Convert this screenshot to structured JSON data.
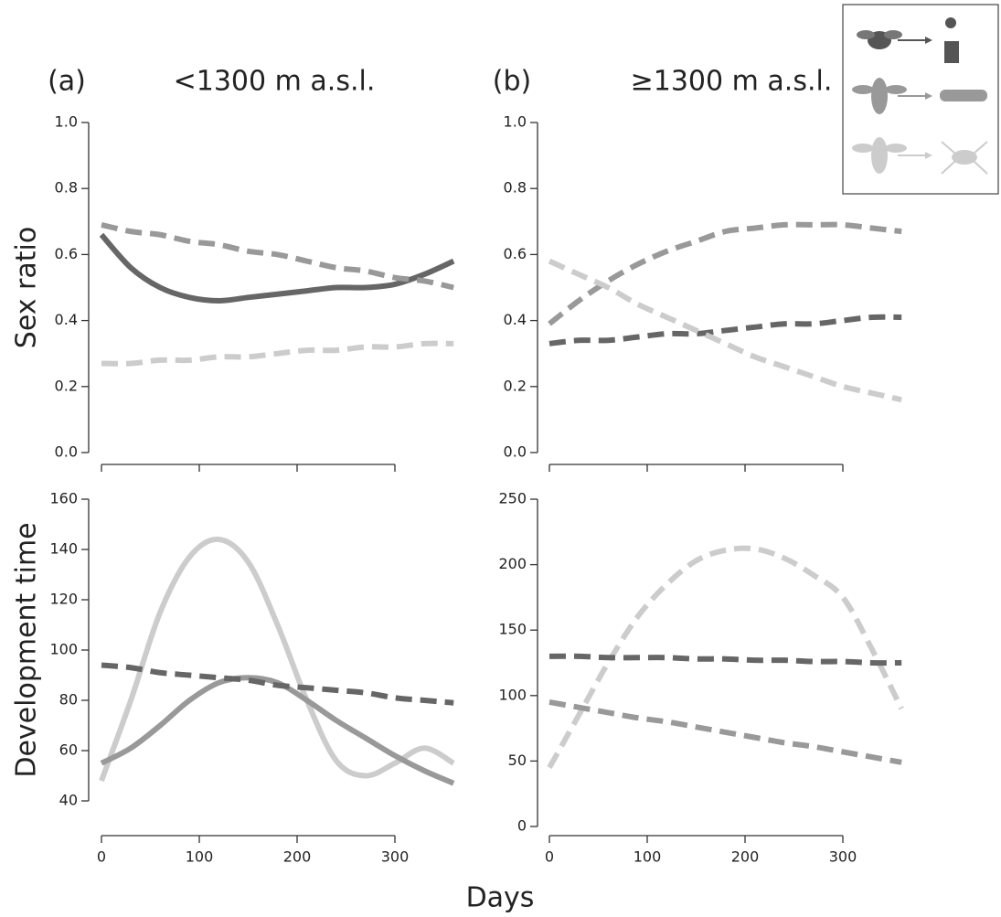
{
  "xlabel": "Days",
  "chart_data": [
    {
      "type": "line",
      "label": "(a)",
      "title": "<1300 m a.s.l.",
      "ylabel": "Sex ratio",
      "x": [
        0,
        30,
        60,
        90,
        120,
        150,
        180,
        210,
        240,
        270,
        300,
        330,
        360
      ],
      "xlim": [
        0,
        300
      ],
      "xticks": [
        0,
        100,
        200,
        300
      ],
      "show_xtick_labels": false,
      "ylim": [
        0,
        1
      ],
      "yticks": [
        {
          "value": 0,
          "label": "0.0"
        },
        0.2,
        0.4,
        0.6,
        0.8,
        {
          "value": 1,
          "label": "1.0"
        }
      ],
      "series": [
        {
          "color": "#666666",
          "dashed": false,
          "values": [
            0.66,
            0.56,
            0.5,
            0.47,
            0.46,
            0.47,
            0.48,
            0.49,
            0.5,
            0.5,
            0.51,
            0.54,
            0.58
          ]
        },
        {
          "color": "#999999",
          "dashed": true,
          "values": [
            0.69,
            0.67,
            0.66,
            0.64,
            0.63,
            0.61,
            0.6,
            0.58,
            0.56,
            0.55,
            0.53,
            0.52,
            0.5
          ]
        },
        {
          "color": "#cccccc",
          "dashed": true,
          "values": [
            0.27,
            0.27,
            0.28,
            0.28,
            0.29,
            0.29,
            0.3,
            0.31,
            0.31,
            0.32,
            0.32,
            0.33,
            0.33
          ]
        }
      ]
    },
    {
      "type": "line",
      "label": "(b)",
      "title": "≥1300 m a.s.l.",
      "x": [
        0,
        30,
        60,
        90,
        120,
        150,
        180,
        210,
        240,
        270,
        300,
        330,
        360
      ],
      "xlim": [
        0,
        300
      ],
      "xticks": [
        0,
        100,
        200,
        300
      ],
      "show_xtick_labels": false,
      "ylim": [
        0,
        1
      ],
      "yticks": [
        {
          "value": 0,
          "label": "0.0"
        },
        0.2,
        0.4,
        0.6,
        0.8,
        {
          "value": 1,
          "label": "1.0"
        }
      ],
      "series": [
        {
          "color": "#999999",
          "dashed": true,
          "values": [
            0.39,
            0.46,
            0.52,
            0.57,
            0.61,
            0.64,
            0.67,
            0.68,
            0.69,
            0.69,
            0.69,
            0.68,
            0.67
          ]
        },
        {
          "color": "#666666",
          "dashed": true,
          "values": [
            0.33,
            0.34,
            0.34,
            0.35,
            0.36,
            0.36,
            0.37,
            0.38,
            0.39,
            0.39,
            0.4,
            0.41,
            0.41
          ]
        },
        {
          "color": "#cccccc",
          "dashed": true,
          "values": [
            0.58,
            0.54,
            0.5,
            0.45,
            0.41,
            0.37,
            0.33,
            0.29,
            0.26,
            0.23,
            0.2,
            0.18,
            0.16
          ]
        }
      ]
    },
    {
      "type": "line",
      "ylabel": "Development time",
      "x": [
        0,
        30,
        60,
        90,
        120,
        150,
        180,
        210,
        240,
        270,
        300,
        330,
        360
      ],
      "xlim": [
        0,
        300
      ],
      "xticks": [
        0,
        100,
        200,
        300
      ],
      "show_xtick_labels": true,
      "ylim": [
        40,
        160
      ],
      "yticks": [
        40,
        60,
        80,
        100,
        120,
        140,
        160
      ],
      "series": [
        {
          "color": "#cccccc",
          "dashed": false,
          "values": [
            48,
            80,
            115,
            137,
            144,
            135,
            110,
            80,
            56,
            50,
            55,
            61,
            55
          ]
        },
        {
          "color": "#999999",
          "dashed": false,
          "values": [
            55,
            61,
            70,
            80,
            87,
            89,
            87,
            80,
            72,
            65,
            58,
            52,
            47
          ]
        },
        {
          "color": "#666666",
          "dashed": true,
          "values": [
            94,
            93,
            91,
            90,
            89,
            88,
            86,
            85,
            84,
            83,
            81,
            80,
            79
          ]
        }
      ]
    },
    {
      "type": "line",
      "x": [
        0,
        30,
        60,
        90,
        120,
        150,
        180,
        210,
        240,
        270,
        300,
        330,
        360
      ],
      "xlim": [
        0,
        300
      ],
      "xticks": [
        0,
        100,
        200,
        300
      ],
      "show_xtick_labels": true,
      "ylim": [
        0,
        250
      ],
      "yticks": [
        0,
        50,
        100,
        150,
        200,
        250
      ],
      "series": [
        {
          "color": "#cccccc",
          "dashed": true,
          "values": [
            45,
            85,
            125,
            160,
            185,
            203,
            211,
            212,
            205,
            192,
            175,
            135,
            90
          ]
        },
        {
          "color": "#666666",
          "dashed": true,
          "values": [
            130,
            130,
            129,
            129,
            129,
            128,
            128,
            127,
            127,
            126,
            126,
            125,
            125
          ]
        },
        {
          "color": "#999999",
          "dashed": true,
          "values": [
            95,
            91,
            87,
            83,
            80,
            76,
            72,
            68,
            64,
            61,
            57,
            53,
            49
          ]
        }
      ]
    }
  ]
}
